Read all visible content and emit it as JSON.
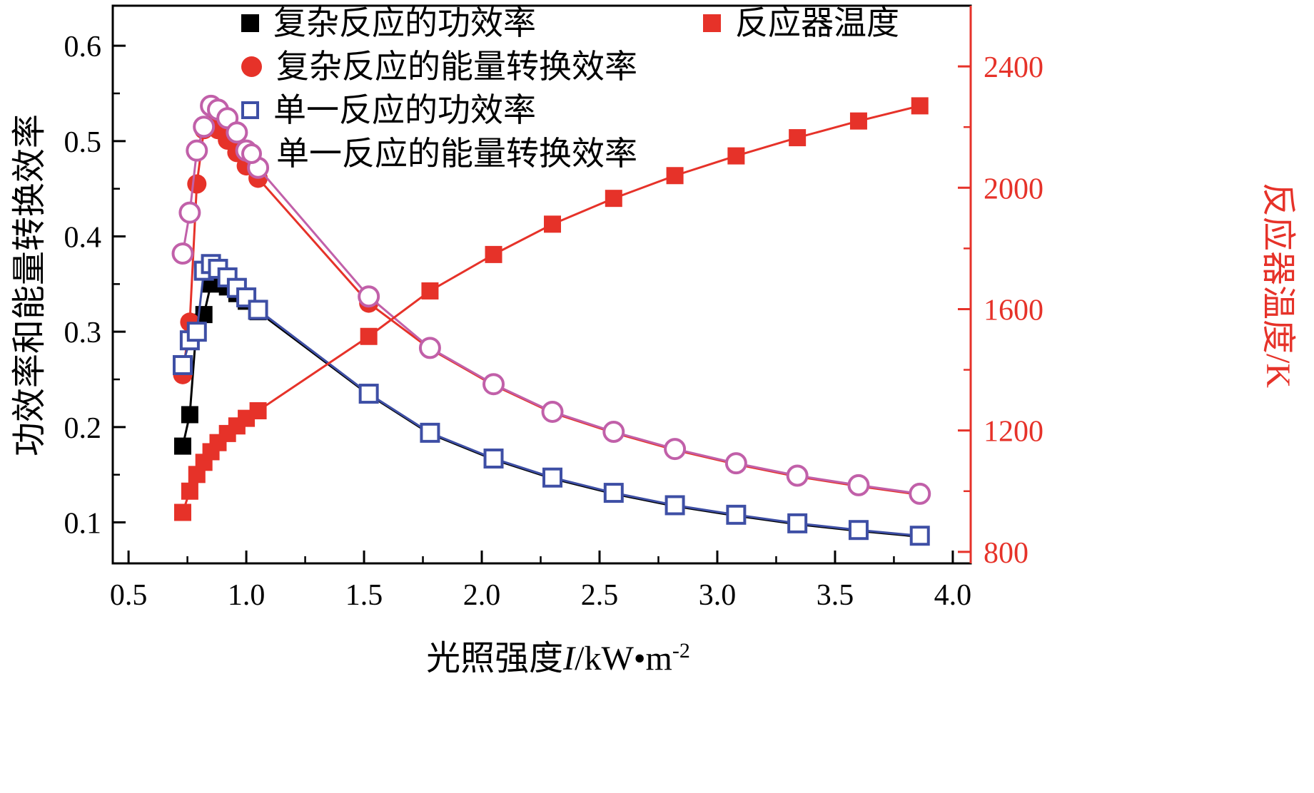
{
  "chart_data": {
    "type": "line",
    "title": "",
    "x_label": {
      "prefix": "光照强度",
      "var": "I",
      "unit": "/kW•m",
      "sup": "-2"
    },
    "y_left_label": "功效率和能量转换效率",
    "y_right_label": "反应器温度/K",
    "x_range": [
      0.433,
      4.076
    ],
    "x_ticks": [
      "0.5",
      "1.0",
      "1.5",
      "2.0",
      "2.5",
      "3.0",
      "3.5",
      "4.0"
    ],
    "y_left_range": [
      0.057,
      0.642
    ],
    "y_left_ticks": [
      "0.1",
      "0.2",
      "0.3",
      "0.4",
      "0.5",
      "0.6"
    ],
    "y_right_range": [
      762,
      2600
    ],
    "y_right_ticks": [
      "800",
      "1200",
      "1600",
      "2000",
      "2400"
    ],
    "x": [
      0.73,
      0.76,
      0.79,
      0.82,
      0.85,
      0.88,
      0.92,
      0.96,
      1.0,
      1.05,
      1.52,
      1.78,
      2.05,
      2.3,
      2.56,
      2.82,
      3.08,
      3.34,
      3.6,
      3.86
    ],
    "series": [
      {
        "name": "复杂反应的功效率",
        "axis": "left",
        "color": "#000000",
        "marker": "square",
        "fill": "solid",
        "values": [
          0.18,
          0.213,
          0.31,
          0.318,
          0.35,
          0.352,
          0.347,
          0.34,
          0.332,
          0.321,
          0.234,
          0.193,
          0.166,
          0.146,
          0.13,
          0.117,
          0.107,
          0.098,
          0.091,
          0.085
        ]
      },
      {
        "name": "复杂反应的能量转换效率",
        "axis": "left",
        "color": "#e63229",
        "marker": "circle",
        "fill": "solid",
        "values": [
          0.255,
          0.31,
          0.455,
          0.512,
          0.517,
          0.512,
          0.501,
          0.488,
          0.474,
          0.461,
          0.33,
          0.282,
          0.244,
          0.215,
          0.194,
          0.176,
          0.161,
          0.148,
          0.138,
          0.129
        ]
      },
      {
        "name": "单一反应的功效率",
        "axis": "left",
        "color": "#3e4fa5",
        "marker": "square",
        "fill": "open",
        "values": [
          0.265,
          0.291,
          0.3,
          0.364,
          0.371,
          0.366,
          0.357,
          0.346,
          0.336,
          0.323,
          0.235,
          0.194,
          0.167,
          0.147,
          0.131,
          0.118,
          0.108,
          0.099,
          0.092,
          0.086
        ]
      },
      {
        "name": "单一反应的能量转换效率",
        "axis": "left",
        "color": "#c160a9",
        "marker": "circle",
        "fill": "open",
        "values": [
          0.382,
          0.425,
          0.49,
          0.515,
          0.537,
          0.533,
          0.524,
          0.509,
          0.49,
          0.472,
          0.337,
          0.283,
          0.245,
          0.216,
          0.195,
          0.177,
          0.162,
          0.149,
          0.139,
          0.13
        ]
      },
      {
        "name": "反应器温度",
        "axis": "right",
        "color": "#e63229",
        "marker": "square",
        "fill": "solid",
        "values": [
          930,
          1000,
          1055,
          1095,
          1130,
          1160,
          1190,
          1215,
          1240,
          1265,
          1510,
          1660,
          1780,
          1880,
          1965,
          2040,
          2105,
          2165,
          2220,
          2270
        ]
      }
    ],
    "colors": {
      "frame": "#000000",
      "right_axis": "#e63229"
    },
    "legend_position": {
      "main": "top-left",
      "temperature": "top-right"
    },
    "grid": "off"
  }
}
